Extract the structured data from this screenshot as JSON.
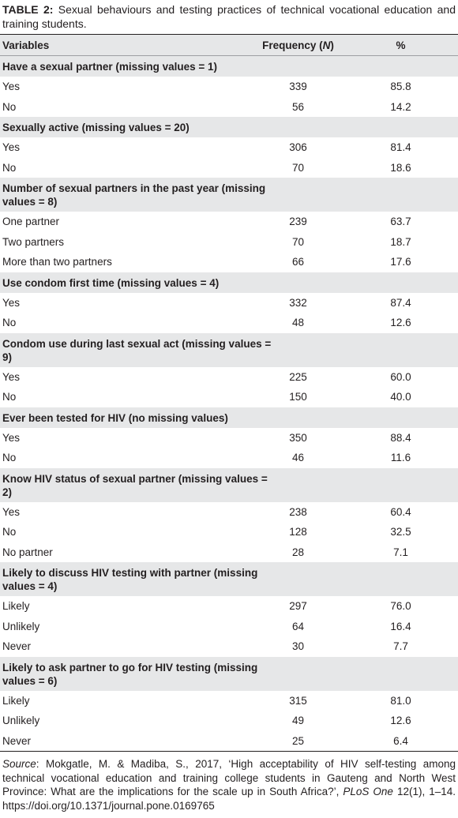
{
  "table": {
    "label": "TABLE 2:",
    "caption": "Sexual behaviours and testing practices of technical vocational education and training students.",
    "columns": {
      "variables": "Variables",
      "frequency_prefix": "Frequency (",
      "n_symbol": "N",
      "frequency_suffix": ")",
      "percent": "%"
    },
    "sections": [
      {
        "title": "Have a sexual partner (missing values = 1)",
        "rows": [
          [
            "Yes",
            339,
            "85.8"
          ],
          [
            "No",
            56,
            "14.2"
          ]
        ]
      },
      {
        "title": "Sexually active (missing values = 20)",
        "rows": [
          [
            "Yes",
            306,
            "81.4"
          ],
          [
            "No",
            70,
            "18.6"
          ]
        ]
      },
      {
        "title": "Number of sexual partners in the past year (missing values = 8)",
        "rows": [
          [
            "One partner",
            239,
            "63.7"
          ],
          [
            "Two partners",
            70,
            "18.7"
          ],
          [
            "More than two partners",
            66,
            "17.6"
          ]
        ]
      },
      {
        "title": "Use condom first time (missing values = 4)",
        "rows": [
          [
            "Yes",
            332,
            "87.4"
          ],
          [
            "No",
            48,
            "12.6"
          ]
        ]
      },
      {
        "title": "Condom use during last sexual act (missing values = 9)",
        "rows": [
          [
            "Yes",
            225,
            "60.0"
          ],
          [
            "No",
            150,
            "40.0"
          ]
        ]
      },
      {
        "title": "Ever been tested for HIV (no missing values)",
        "rows": [
          [
            "Yes",
            350,
            "88.4"
          ],
          [
            "No",
            46,
            "11.6"
          ]
        ]
      },
      {
        "title": "Know HIV status of sexual partner (missing values = 2)",
        "rows": [
          [
            "Yes",
            238,
            "60.4"
          ],
          [
            "No",
            128,
            "32.5"
          ],
          [
            "No partner",
            28,
            "7.1"
          ]
        ]
      },
      {
        "title": "Likely to discuss HIV testing with partner (missing values = 4)",
        "rows": [
          [
            "Likely",
            297,
            "76.0"
          ],
          [
            "Unlikely",
            64,
            "16.4"
          ],
          [
            "Never",
            30,
            "7.7"
          ]
        ]
      },
      {
        "title": "Likely to ask partner to go for HIV testing (missing values = 6)",
        "rows": [
          [
            "Likely",
            315,
            "81.0"
          ],
          [
            "Unlikely",
            49,
            "12.6"
          ],
          [
            "Never",
            25,
            "6.4"
          ]
        ]
      }
    ]
  },
  "source": {
    "label": "Source",
    "text_before": ": Mokgatle, M. & Madiba, S., 2017, ‘High acceptability of HIV self-testing among technical vocational education and training college students in Gauteng and North West Province: What are the implications for the scale up in South Africa?’, ",
    "journal": "PLoS One",
    "text_after": " 12(1), 1–14. https://doi.org/10.1371/journal.pone.0169765"
  }
}
